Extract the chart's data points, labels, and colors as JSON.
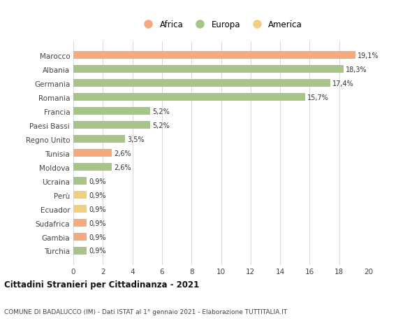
{
  "countries": [
    "Marocco",
    "Albania",
    "Germania",
    "Romania",
    "Francia",
    "Paesi Bassi",
    "Regno Unito",
    "Tunisia",
    "Moldova",
    "Ucraina",
    "Perù",
    "Ecuador",
    "Sudafrica",
    "Gambia",
    "Turchia"
  ],
  "values": [
    19.1,
    18.3,
    17.4,
    15.7,
    5.2,
    5.2,
    3.5,
    2.6,
    2.6,
    0.9,
    0.9,
    0.9,
    0.9,
    0.9,
    0.9
  ],
  "labels": [
    "19,1%",
    "18,3%",
    "17,4%",
    "15,7%",
    "5,2%",
    "5,2%",
    "3,5%",
    "2,6%",
    "2,6%",
    "0,9%",
    "0,9%",
    "0,9%",
    "0,9%",
    "0,9%",
    "0,9%"
  ],
  "continents": [
    "Africa",
    "Europa",
    "Europa",
    "Europa",
    "Europa",
    "Europa",
    "Europa",
    "Africa",
    "Europa",
    "Europa",
    "America",
    "America",
    "Africa",
    "Africa",
    "Europa"
  ],
  "colors": {
    "Africa": "#F4A97F",
    "Europa": "#A8C48A",
    "America": "#F0D080"
  },
  "xlim": [
    0,
    20
  ],
  "xticks": [
    0,
    2,
    4,
    6,
    8,
    10,
    12,
    14,
    16,
    18,
    20
  ],
  "title": "Cittadini Stranieri per Cittadinanza - 2021",
  "subtitle": "COMUNE DI BADALUCCO (IM) - Dati ISTAT al 1° gennaio 2021 - Elaborazione TUTTITALIA.IT",
  "bg_color": "#ffffff",
  "grid_color": "#d0d0d0",
  "bar_height": 0.55,
  "legend_entries": [
    "Africa",
    "Europa",
    "America"
  ]
}
